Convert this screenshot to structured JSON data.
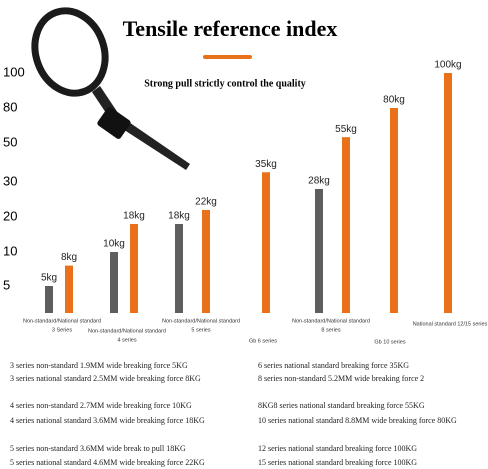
{
  "chart_data": {
    "type": "bar",
    "title": "Tensile reference index",
    "subtitle": "Strong pull strictly control the quality",
    "categories": [
      [
        "Non-standard/National standard",
        "3 Series"
      ],
      [
        "Non-standard/National standard",
        "4 series"
      ],
      [
        "Non-standard/National standard",
        "5 series"
      ],
      [
        "Gb 6 series"
      ],
      [
        "Non-standard/National standard",
        "8 series"
      ],
      [
        "Gb 10 series"
      ],
      [
        "National standard 12/15 series"
      ]
    ],
    "series": [
      {
        "color": "#5e5e5e",
        "values": [
          5,
          10,
          18,
          null,
          28,
          null,
          null
        ],
        "value_labels": [
          "5kg",
          "10kg",
          "18kg",
          null,
          "28kg",
          null,
          null
        ]
      },
      {
        "color": "#e8711a",
        "values": [
          8,
          18,
          22,
          35,
          55,
          80,
          100
        ],
        "value_labels": [
          "8kg",
          "18kg",
          "22kg",
          "35kg",
          "55kg",
          "80kg",
          "100kg"
        ]
      }
    ],
    "ylim": [
      0,
      100
    ],
    "yticks": [
      5,
      10,
      20,
      30,
      50,
      80,
      100
    ]
  },
  "specs": {
    "left": [
      "3 series non-standard 1.9MM wide breaking force 5KG",
      "3 series national standard 2.5MM wide breaking force 8KG",
      "4 series non-standard 2.7MM wide breaking force 10KG",
      "4 series national standard 3.6MM wide breaking force 18KG",
      "5 series non-standard 3.6MM wide break to pull 18KG",
      "5 series national standard 4.6MM wide breaking force 22KG"
    ],
    "right": [
      "6 series national standard breaking force 35KG",
      "8 series non-standard 5.2MM wide breaking force 2",
      "8KG8 series national standard breaking force 55KG",
      "10 series national standard 8.8MM wide breaking force 80KG",
      "12 series national standard breaking force 100KG",
      "15 series national standard breaking force 100KG"
    ]
  }
}
